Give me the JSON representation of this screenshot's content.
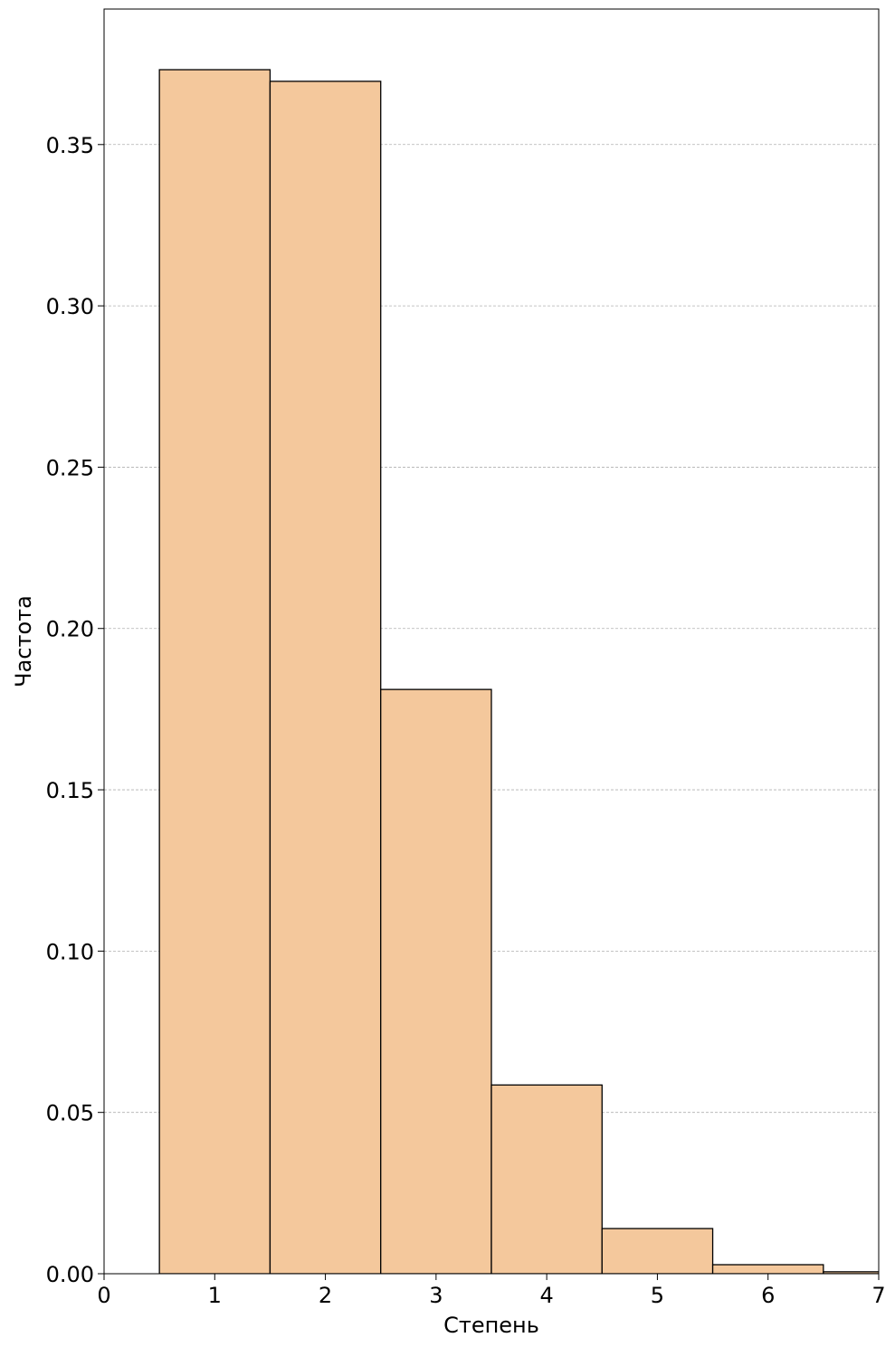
{
  "chart_data": {
    "type": "bar",
    "xlabel": "Степень",
    "ylabel": "Частота",
    "xlim": [
      0,
      7
    ],
    "ylim": [
      0,
      0.392
    ],
    "grid": "horizontal-dashed",
    "bar_color": "#F4C89C",
    "edge_color": "#000000",
    "bins": [
      {
        "x0": 0.5,
        "x1": 1.5,
        "value": 0.3732
      },
      {
        "x0": 1.5,
        "x1": 2.5,
        "value": 0.3696
      },
      {
        "x0": 2.5,
        "x1": 3.5,
        "value": 0.1811
      },
      {
        "x0": 3.5,
        "x1": 4.5,
        "value": 0.0585
      },
      {
        "x0": 4.5,
        "x1": 5.5,
        "value": 0.014
      },
      {
        "x0": 5.5,
        "x1": 6.5,
        "value": 0.0028
      },
      {
        "x0": 6.5,
        "x1": 7.5,
        "value": 0.0006
      }
    ],
    "xticks": [
      0,
      1,
      2,
      3,
      4,
      5,
      6,
      7
    ],
    "xtick_labels": [
      "0",
      "1",
      "2",
      "3",
      "4",
      "5",
      "6",
      "7"
    ],
    "yticks": [
      0,
      0.05,
      0.1,
      0.15,
      0.2,
      0.25,
      0.3,
      0.35
    ],
    "ytick_labels": [
      "0.00",
      "0.05",
      "0.10",
      "0.15",
      "0.20",
      "0.25",
      "0.30",
      "0.35"
    ]
  }
}
